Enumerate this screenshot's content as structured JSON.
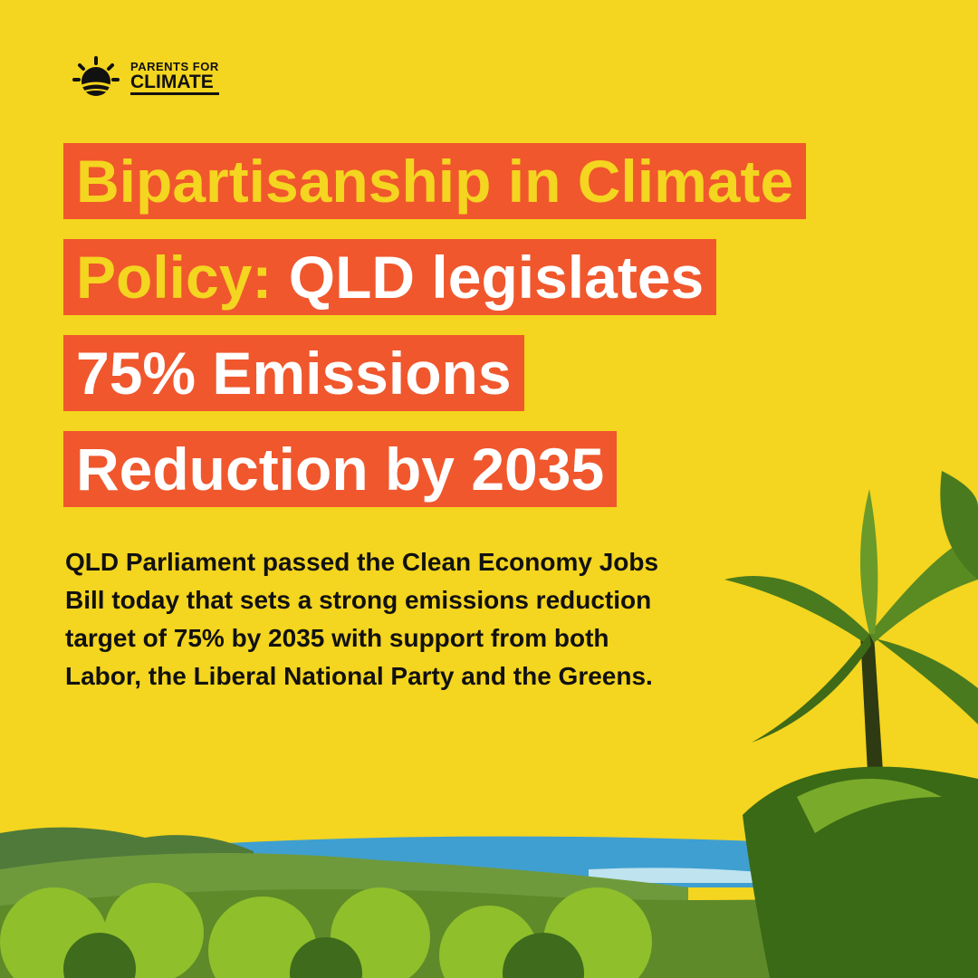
{
  "logo": {
    "line1": "PARENTS FOR",
    "line2": "CLIMATE"
  },
  "headline": {
    "lines": [
      {
        "segments": [
          {
            "text": "Bipartisanship in Climate",
            "color": "yellow"
          }
        ]
      },
      {
        "segments": [
          {
            "text": "Policy:",
            "color": "yellow"
          },
          {
            "text": " QLD legislates",
            "color": "white"
          }
        ]
      },
      {
        "segments": [
          {
            "text": "75% Emissions",
            "color": "white"
          }
        ]
      },
      {
        "segments": [
          {
            "text": "Reduction by 2035",
            "color": "white"
          }
        ]
      }
    ]
  },
  "body": {
    "lines": [
      "QLD Parliament passed the Clean Economy Jobs",
      "Bill today that sets a strong emissions reduction",
      "target of 75% by 2035 with support from both",
      "Labor, the Liberal National Party and the Greens."
    ]
  }
}
